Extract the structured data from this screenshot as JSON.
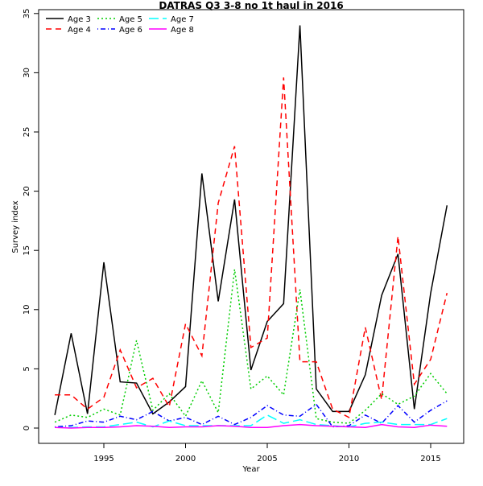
{
  "chart_data": {
    "type": "line",
    "title": "DATRAS Q3 3-8 no 1t haul in 2016",
    "xlabel": "Year",
    "ylabel": "Survey index",
    "xlim": [
      1991,
      2017
    ],
    "ylim": [
      -1.3,
      35.5
    ],
    "xticks": [
      1995,
      2000,
      2005,
      2010,
      2015
    ],
    "yticks": [
      0,
      5,
      10,
      15,
      20,
      25,
      30,
      35
    ],
    "legend_position": "top-left",
    "x": [
      1992,
      1993,
      1994,
      1995,
      1996,
      1997,
      1998,
      1999,
      2000,
      2001,
      2002,
      2003,
      2004,
      2005,
      2006,
      2007,
      2008,
      2009,
      2010,
      2011,
      2012,
      2013,
      2014,
      2015,
      2016
    ],
    "series": [
      {
        "name": "Age 3",
        "color": "#000000",
        "dash": "",
        "values": [
          1.1,
          8.0,
          1.2,
          14.0,
          3.9,
          3.8,
          1.2,
          2.2,
          3.5,
          21.5,
          10.7,
          19.3,
          4.9,
          9.0,
          10.5,
          34.0,
          3.3,
          1.4,
          1.4,
          4.5,
          11.2,
          14.7,
          1.6,
          11.4,
          18.8
        ]
      },
      {
        "name": "Age 4",
        "color": "#ff0000",
        "dash": "7,5",
        "values": [
          2.8,
          2.8,
          1.6,
          2.6,
          6.6,
          3.4,
          4.2,
          1.8,
          8.8,
          6.1,
          19.0,
          23.8,
          6.8,
          7.6,
          29.6,
          5.6,
          5.6,
          1.6,
          0.9,
          8.5,
          2.4,
          16.2,
          3.7,
          5.8,
          11.4
        ]
      },
      {
        "name": "Age 5",
        "color": "#00cd00",
        "dash": "2,3",
        "values": [
          0.5,
          1.1,
          0.9,
          1.6,
          1.1,
          7.4,
          1.5,
          2.9,
          1.0,
          4.0,
          1.3,
          13.4,
          3.3,
          4.4,
          2.8,
          11.7,
          0.8,
          0.5,
          0.4,
          1.5,
          2.9,
          2.0,
          2.7,
          4.6,
          2.9
        ]
      },
      {
        "name": "Age 6",
        "color": "#0000ff",
        "dash": "1,3,6,3",
        "values": [
          0.1,
          0.2,
          0.6,
          0.5,
          1.0,
          0.7,
          1.4,
          0.6,
          0.9,
          0.3,
          1.0,
          0.3,
          0.9,
          1.9,
          1.1,
          1.0,
          2.0,
          0.1,
          0.2,
          1.1,
          0.4,
          1.9,
          0.5,
          1.5,
          2.3
        ]
      },
      {
        "name": "Age 7",
        "color": "#00ffff",
        "dash": "12,5",
        "values": [
          0.05,
          0.05,
          0.1,
          0.1,
          0.3,
          0.5,
          0.1,
          0.6,
          0.2,
          0.2,
          0.2,
          0.2,
          0.2,
          1.1,
          0.4,
          0.7,
          0.3,
          0.2,
          0.1,
          0.4,
          0.5,
          0.3,
          0.3,
          0.3,
          0.8
        ]
      },
      {
        "name": "Age 8",
        "color": "#ff00ff",
        "dash": "",
        "values": [
          0.05,
          0.0,
          0.05,
          0.05,
          0.1,
          0.2,
          0.15,
          0.05,
          0.1,
          0.1,
          0.2,
          0.15,
          0.05,
          0.05,
          0.2,
          0.3,
          0.2,
          0.15,
          0.1,
          0.05,
          0.3,
          0.1,
          0.05,
          0.25,
          0.15
        ]
      }
    ]
  }
}
